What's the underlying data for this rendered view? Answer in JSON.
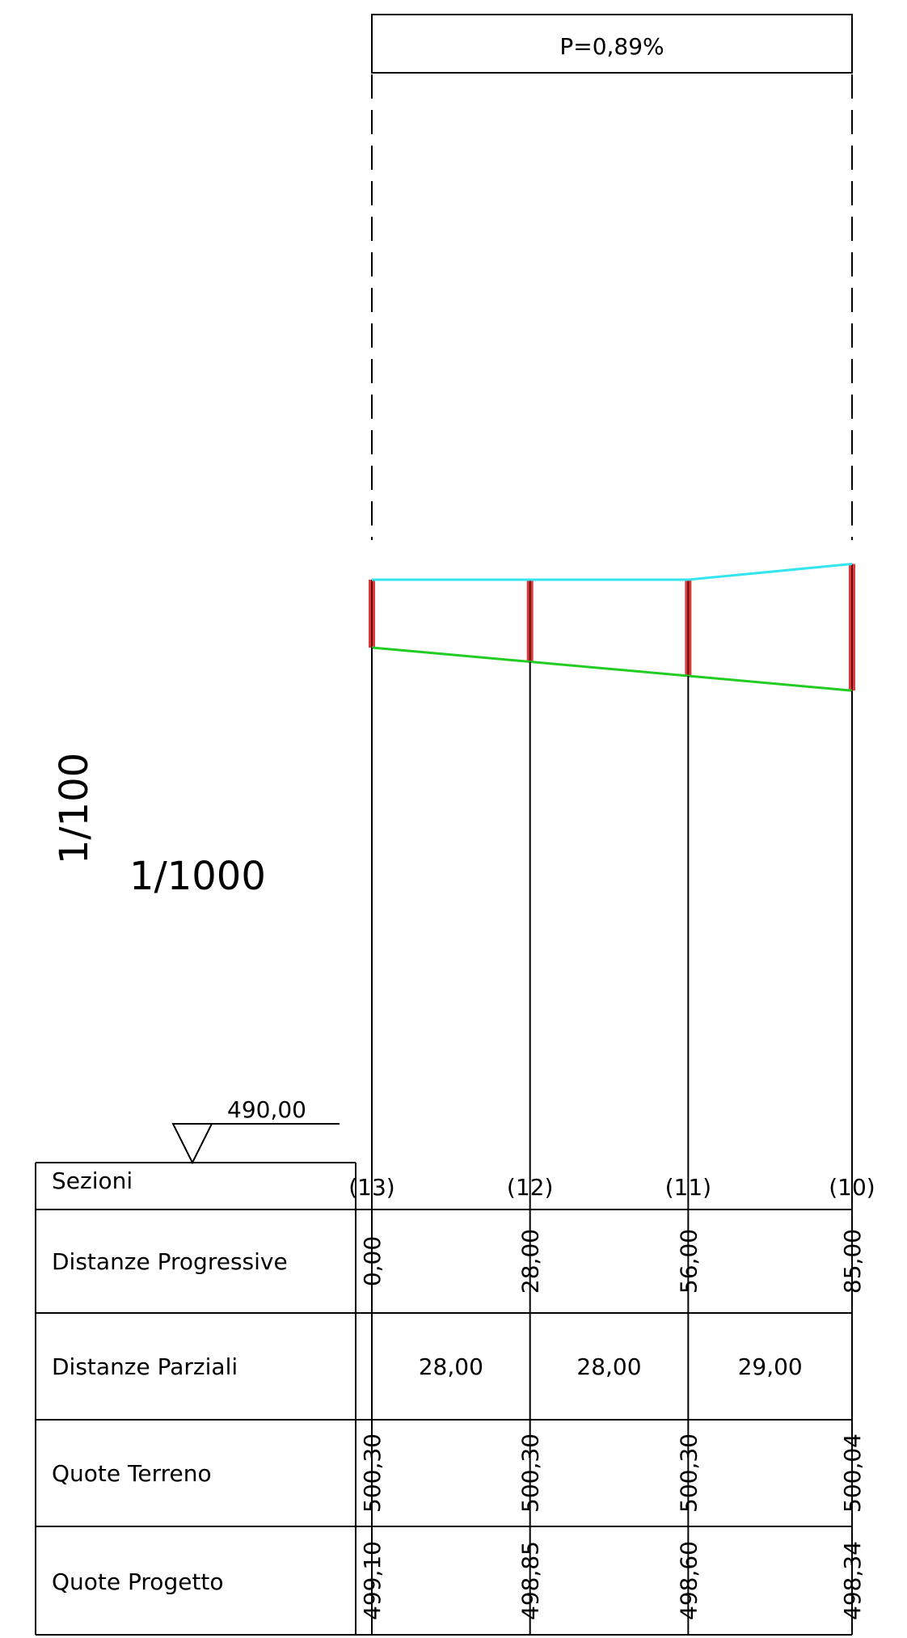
{
  "slope_label": "P=0,89%",
  "scales": {
    "vertical": "1/100",
    "horizontal": "1/1000"
  },
  "datum": "490,00",
  "rows": {
    "sezioni": "Sezioni",
    "progressive": "Distanze Progressive",
    "parziali": "Distanze Parziali",
    "terreno": "Quote Terreno",
    "progetto": "Quote Progetto"
  },
  "sections": [
    {
      "label": "(13)",
      "progressive": "0,00",
      "terreno": "500,30",
      "progetto": "499,10"
    },
    {
      "label": "(12)",
      "progressive": "28,00",
      "terreno": "500,30",
      "progetto": "498,85"
    },
    {
      "label": "(11)",
      "progressive": "56,00",
      "terreno": "500,30",
      "progetto": "498,60"
    },
    {
      "label": "(10)",
      "progressive": "85,00",
      "terreno": "500,04",
      "progetto": "498,34"
    }
  ],
  "partials": [
    "28,00",
    "28,00",
    "29,00"
  ],
  "colors": {
    "ground_line": "#33e5ee",
    "design_line": "#22cc22",
    "cut_depth": "#e03a3a",
    "ink": "#000000"
  }
}
